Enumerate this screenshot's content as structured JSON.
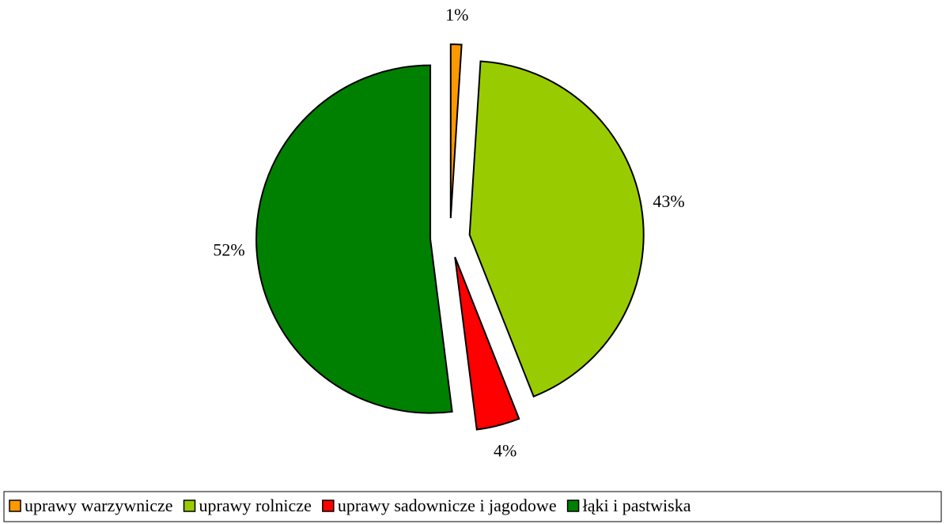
{
  "chart_data": {
    "type": "pie",
    "categories": [
      "uprawy warzywnicze",
      "uprawy rolnicze",
      "uprawy sadownicze i jagodowe",
      "łąki i pastwiska"
    ],
    "values": [
      1,
      43,
      4,
      52
    ],
    "value_labels": [
      "1%",
      "43%",
      "4%",
      "52%"
    ],
    "colors": [
      "#ff9900",
      "#99cc00",
      "#ff0000",
      "#008000"
    ],
    "exploded": true,
    "legend": "bottom"
  }
}
